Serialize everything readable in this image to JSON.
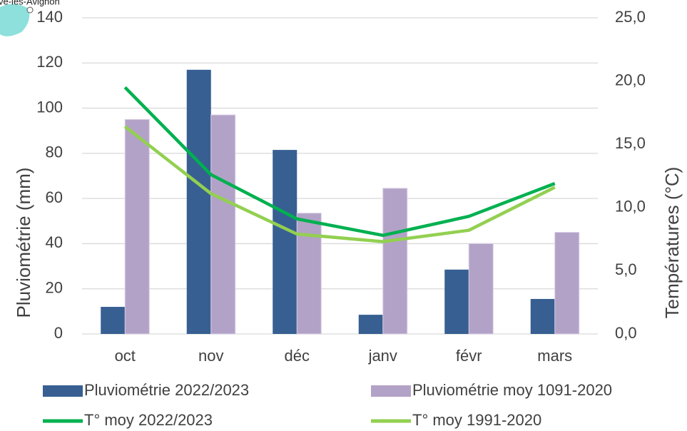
{
  "chart_data": {
    "type": "bar_line",
    "annotation": "ve-lès-Avignon",
    "categories": [
      "oct",
      "nov",
      "déc",
      "janv",
      "févr",
      "mars"
    ],
    "y_label": "Pluviométrie (mm)",
    "y2_label": "Températures (°C)",
    "ylim": [
      0,
      140
    ],
    "yticks": [
      0,
      20,
      40,
      60,
      80,
      100,
      120,
      140
    ],
    "y2lim": [
      0,
      25
    ],
    "y2ticks": [
      {
        "value": 0,
        "label": "0,0"
      },
      {
        "value": 5,
        "label": "5,0"
      },
      {
        "value": 10,
        "label": "10,0"
      },
      {
        "value": 15,
        "label": "15,0"
      },
      {
        "value": 20,
        "label": "20,0"
      },
      {
        "value": 25,
        "label": "25,0"
      }
    ],
    "grid": true,
    "series": [
      {
        "name": "Pluviométrie 2022/2023",
        "kind": "bar",
        "color": "#375f92",
        "values": [
          12,
          117,
          81.5,
          8.5,
          28.5,
          15.5
        ]
      },
      {
        "name": "Pluviométrie moy 1091-2020",
        "kind": "bar",
        "color": "#b3a2c7",
        "values": [
          95,
          97,
          53.5,
          64.5,
          40,
          45
        ]
      },
      {
        "name": "T° moy 2022/2023",
        "kind": "line",
        "axis": "y2",
        "color": "#00b050",
        "values": [
          19.5,
          12.6,
          9.1,
          7.8,
          9.3,
          11.9
        ]
      },
      {
        "name": "T° moy 1991-2020",
        "kind": "line",
        "axis": "y2",
        "color": "#92d050",
        "values": [
          16.4,
          11.1,
          7.9,
          7.3,
          8.2,
          11.6
        ]
      }
    ]
  }
}
